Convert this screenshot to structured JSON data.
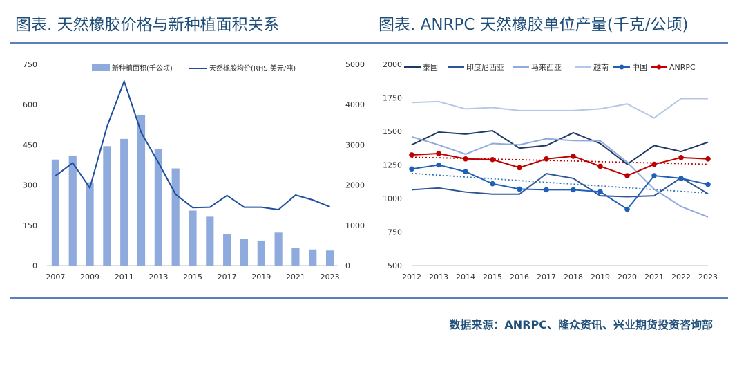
{
  "header": {
    "left_title": "图表. 天然橡胶价格与新种植面积关系",
    "right_title": "图表. ANRPC 天然橡胶单位产量(千克/公顷)"
  },
  "footer": {
    "source": "数据来源：ANRPC、隆众资讯、兴业期货投资咨询部"
  },
  "chart_data": [
    {
      "type": "bar",
      "categories": [
        "2007",
        "2008",
        "2009",
        "2010",
        "2011",
        "2012",
        "2013",
        "2014",
        "2015",
        "2016",
        "2017",
        "2018",
        "2019",
        "2020",
        "2021",
        "2022",
        "2023"
      ],
      "x_tick_labels": [
        "2007",
        "2009",
        "2011",
        "2013",
        "2015",
        "2017",
        "2019",
        "2021",
        "2023"
      ],
      "series": [
        {
          "name": "新种植面积(千公顷)",
          "axis": "left",
          "type": "bar",
          "color": "#8faadc",
          "values": [
            395,
            410,
            310,
            445,
            472,
            562,
            433,
            362,
            205,
            182,
            118,
            100,
            93,
            123,
            65,
            60,
            56
          ]
        },
        {
          "name": "天然橡胶均价(RHS,美元/吨)",
          "axis": "right",
          "type": "line",
          "color": "#1f4e9c",
          "values": [
            2230,
            2550,
            1930,
            3450,
            4580,
            3300,
            2560,
            1770,
            1440,
            1450,
            1740,
            1450,
            1450,
            1390,
            1750,
            1630,
            1460
          ]
        }
      ],
      "y_left": {
        "ylim": [
          0,
          750
        ],
        "ticks": [
          "0",
          "150",
          "300",
          "450",
          "600",
          "750"
        ]
      },
      "y_right": {
        "ylim": [
          0,
          5000
        ],
        "ticks": [
          "0",
          "1000",
          "2000",
          "3000",
          "4000",
          "5000"
        ]
      },
      "legend_position": "top"
    },
    {
      "type": "line",
      "x": [
        "2012",
        "2013",
        "2014",
        "2015",
        "2016",
        "2017",
        "2018",
        "2019",
        "2020",
        "2021",
        "2022",
        "2023"
      ],
      "ylim": [
        500,
        2000
      ],
      "y_ticks": [
        "500",
        "750",
        "1000",
        "1250",
        "1500",
        "1750",
        "2000"
      ],
      "series": [
        {
          "name": "泰国",
          "color": "#1f3864",
          "marker": false,
          "values": [
            1400,
            1495,
            1480,
            1505,
            1375,
            1395,
            1490,
            1410,
            1255,
            1395,
            1350,
            1420
          ]
        },
        {
          "name": "印度尼西亚",
          "color": "#2f5597",
          "marker": false,
          "values": [
            1065,
            1078,
            1048,
            1032,
            1032,
            1185,
            1150,
            1020,
            1013,
            1020,
            1155,
            1035
          ]
        },
        {
          "name": "马来西亚",
          "color": "#8faadc",
          "marker": false,
          "values": [
            1460,
            1400,
            1330,
            1410,
            1400,
            1445,
            1432,
            1430,
            1270,
            1070,
            940,
            862
          ]
        },
        {
          "name": "越南",
          "color": "#b4c7e7",
          "marker": false,
          "values": [
            1715,
            1722,
            1668,
            1678,
            1655,
            1655,
            1655,
            1668,
            1705,
            1600,
            1745,
            1745
          ]
        },
        {
          "name": "中国",
          "color": "#1f5fb5",
          "marker": true,
          "values": [
            1220,
            1250,
            1200,
            1110,
            1070,
            1065,
            1065,
            1050,
            920,
            1170,
            1150,
            1105
          ]
        },
        {
          "name": "ANRPC",
          "color": "#c00000",
          "marker": true,
          "values": [
            1325,
            1335,
            1295,
            1290,
            1230,
            1295,
            1315,
            1240,
            1170,
            1255,
            1305,
            1295
          ]
        }
      ],
      "trendlines": [
        {
          "of": "中国",
          "color": "#2e75b6",
          "from": 1187,
          "to": 1040
        },
        {
          "of": "ANRPC",
          "color": "#c00000",
          "from": 1308,
          "to": 1255
        }
      ],
      "legend_position": "top"
    }
  ]
}
